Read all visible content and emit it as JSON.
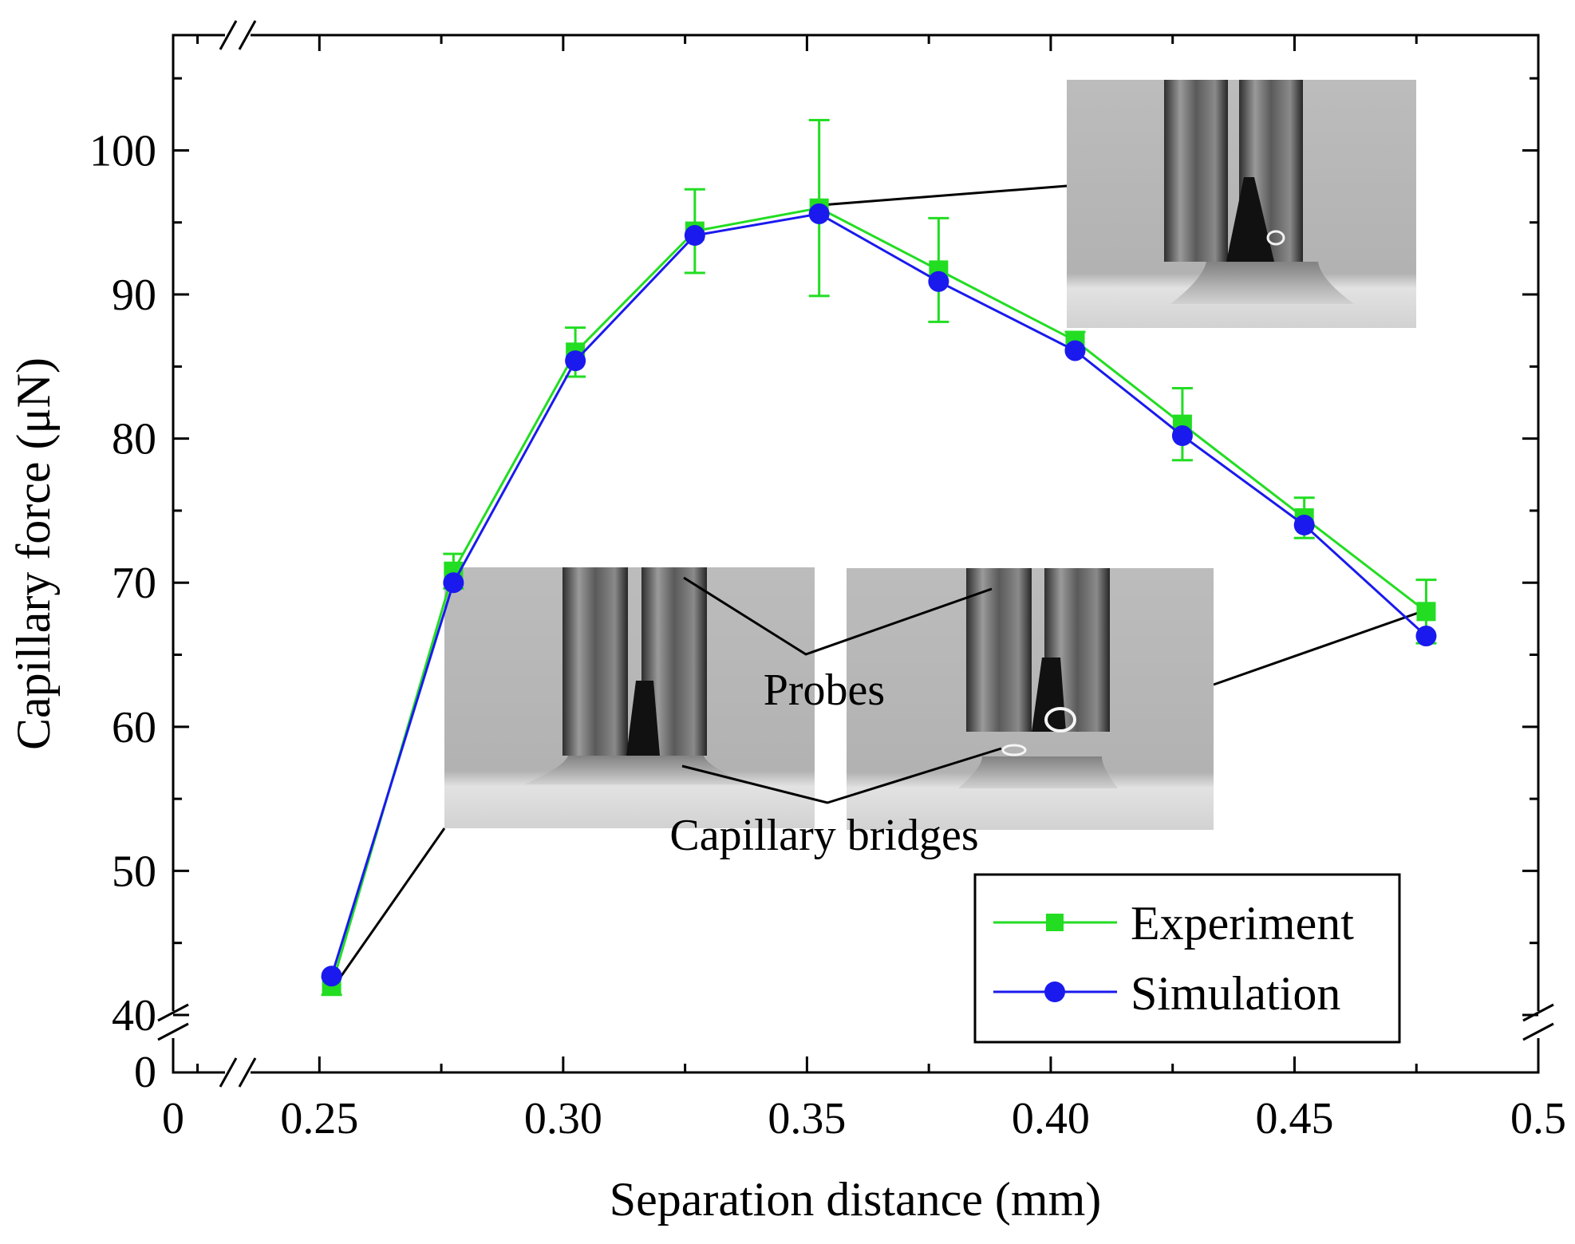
{
  "chart_data": {
    "type": "line",
    "title": "",
    "xlabel": "Separation distance (mm)",
    "ylabel": "Capillary force (μN)",
    "xlim": [
      0.22,
      0.5
    ],
    "ylim": [
      40,
      108
    ],
    "x_break_origin_label": "0",
    "y_break_origin_label": "0",
    "x_ticks": [
      {
        "value": 0.25,
        "label": "0.25"
      },
      {
        "value": 0.3,
        "label": "0.30"
      },
      {
        "value": 0.35,
        "label": "0.35"
      },
      {
        "value": 0.4,
        "label": "0.40"
      },
      {
        "value": 0.45,
        "label": "0.45"
      },
      {
        "value": 0.5,
        "label": "0.5"
      }
    ],
    "y_ticks": [
      {
        "value": 40,
        "label": "40"
      },
      {
        "value": 50,
        "label": "50"
      },
      {
        "value": 60,
        "label": "60"
      },
      {
        "value": 70,
        "label": "70"
      },
      {
        "value": 80,
        "label": "80"
      },
      {
        "value": 90,
        "label": "90"
      },
      {
        "value": 100,
        "label": "100"
      }
    ],
    "series": [
      {
        "name": "Experiment",
        "color": "#22dd22",
        "marker": "square",
        "x": [
          0.2525,
          0.2775,
          0.3025,
          0.327,
          0.3525,
          0.377,
          0.405,
          0.427,
          0.452,
          0.477
        ],
        "y": [
          42.0,
          70.8,
          86.0,
          94.4,
          96.0,
          91.7,
          86.8,
          81.0,
          74.5,
          68.0
        ],
        "err": [
          0.6,
          1.2,
          1.7,
          2.9,
          6.1,
          3.6,
          0.6,
          2.5,
          1.4,
          2.2
        ]
      },
      {
        "name": "Simulation",
        "color": "#1a1aee",
        "marker": "circle",
        "x": [
          0.2525,
          0.2775,
          0.3025,
          0.327,
          0.3525,
          0.377,
          0.405,
          0.427,
          0.452,
          0.477
        ],
        "y": [
          42.7,
          70.0,
          85.4,
          94.1,
          95.6,
          90.9,
          86.1,
          80.2,
          74.0,
          66.3
        ]
      }
    ],
    "legend": {
      "position": "bottom-right",
      "entries": [
        "Experiment",
        "Simulation"
      ]
    },
    "annotations": {
      "probes": "Probes",
      "capillary_bridges": "Capillary bridges"
    },
    "insets": [
      {
        "name": "inset-photo-peak",
        "points_to_x": 0.3525
      },
      {
        "name": "inset-photo-initial",
        "points_to_x": 0.2525
      },
      {
        "name": "inset-photo-final",
        "points_to_x": 0.477
      }
    ]
  }
}
